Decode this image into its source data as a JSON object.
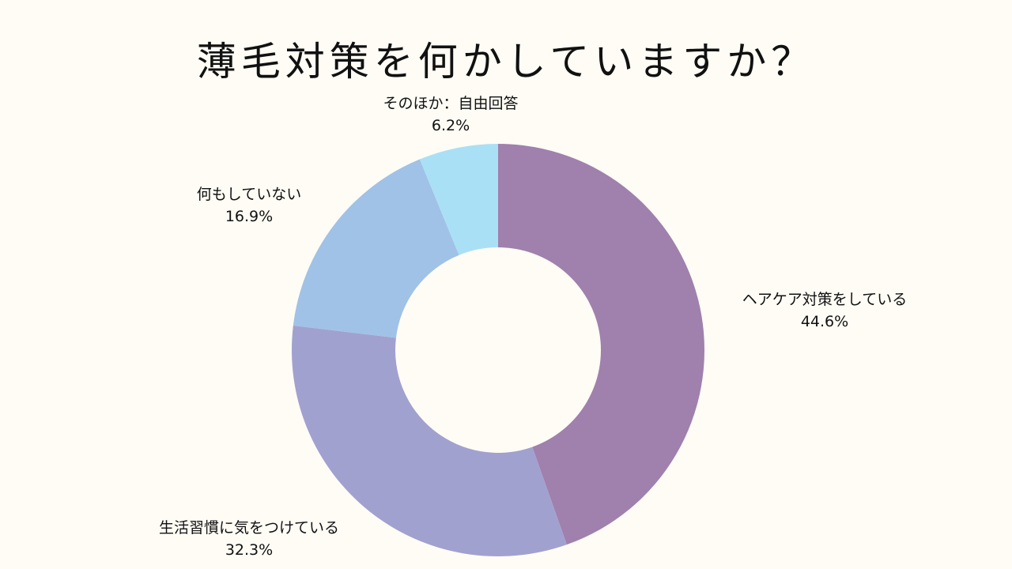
{
  "chart_data": {
    "type": "pie",
    "style": "donut",
    "title": "薄毛対策を何かしていますか？",
    "slices": [
      {
        "label": "ヘアケア対策をしている",
        "value": 44.6,
        "value_label": "44.6%",
        "color": "#a080ad"
      },
      {
        "label": "生活習慣に気をつけている",
        "value": 32.3,
        "value_label": "32.3%",
        "color": "#a1a1d0"
      },
      {
        "label": "何もしていない",
        "value": 16.9,
        "value_label": "16.9%",
        "color": "#a0c2e6"
      },
      {
        "label": "そのほか：自由回答",
        "value": 6.2,
        "value_label": "6.2%",
        "color": "#aae0f5"
      }
    ],
    "start": "top",
    "direction": "clockwise",
    "legend": "none"
  }
}
